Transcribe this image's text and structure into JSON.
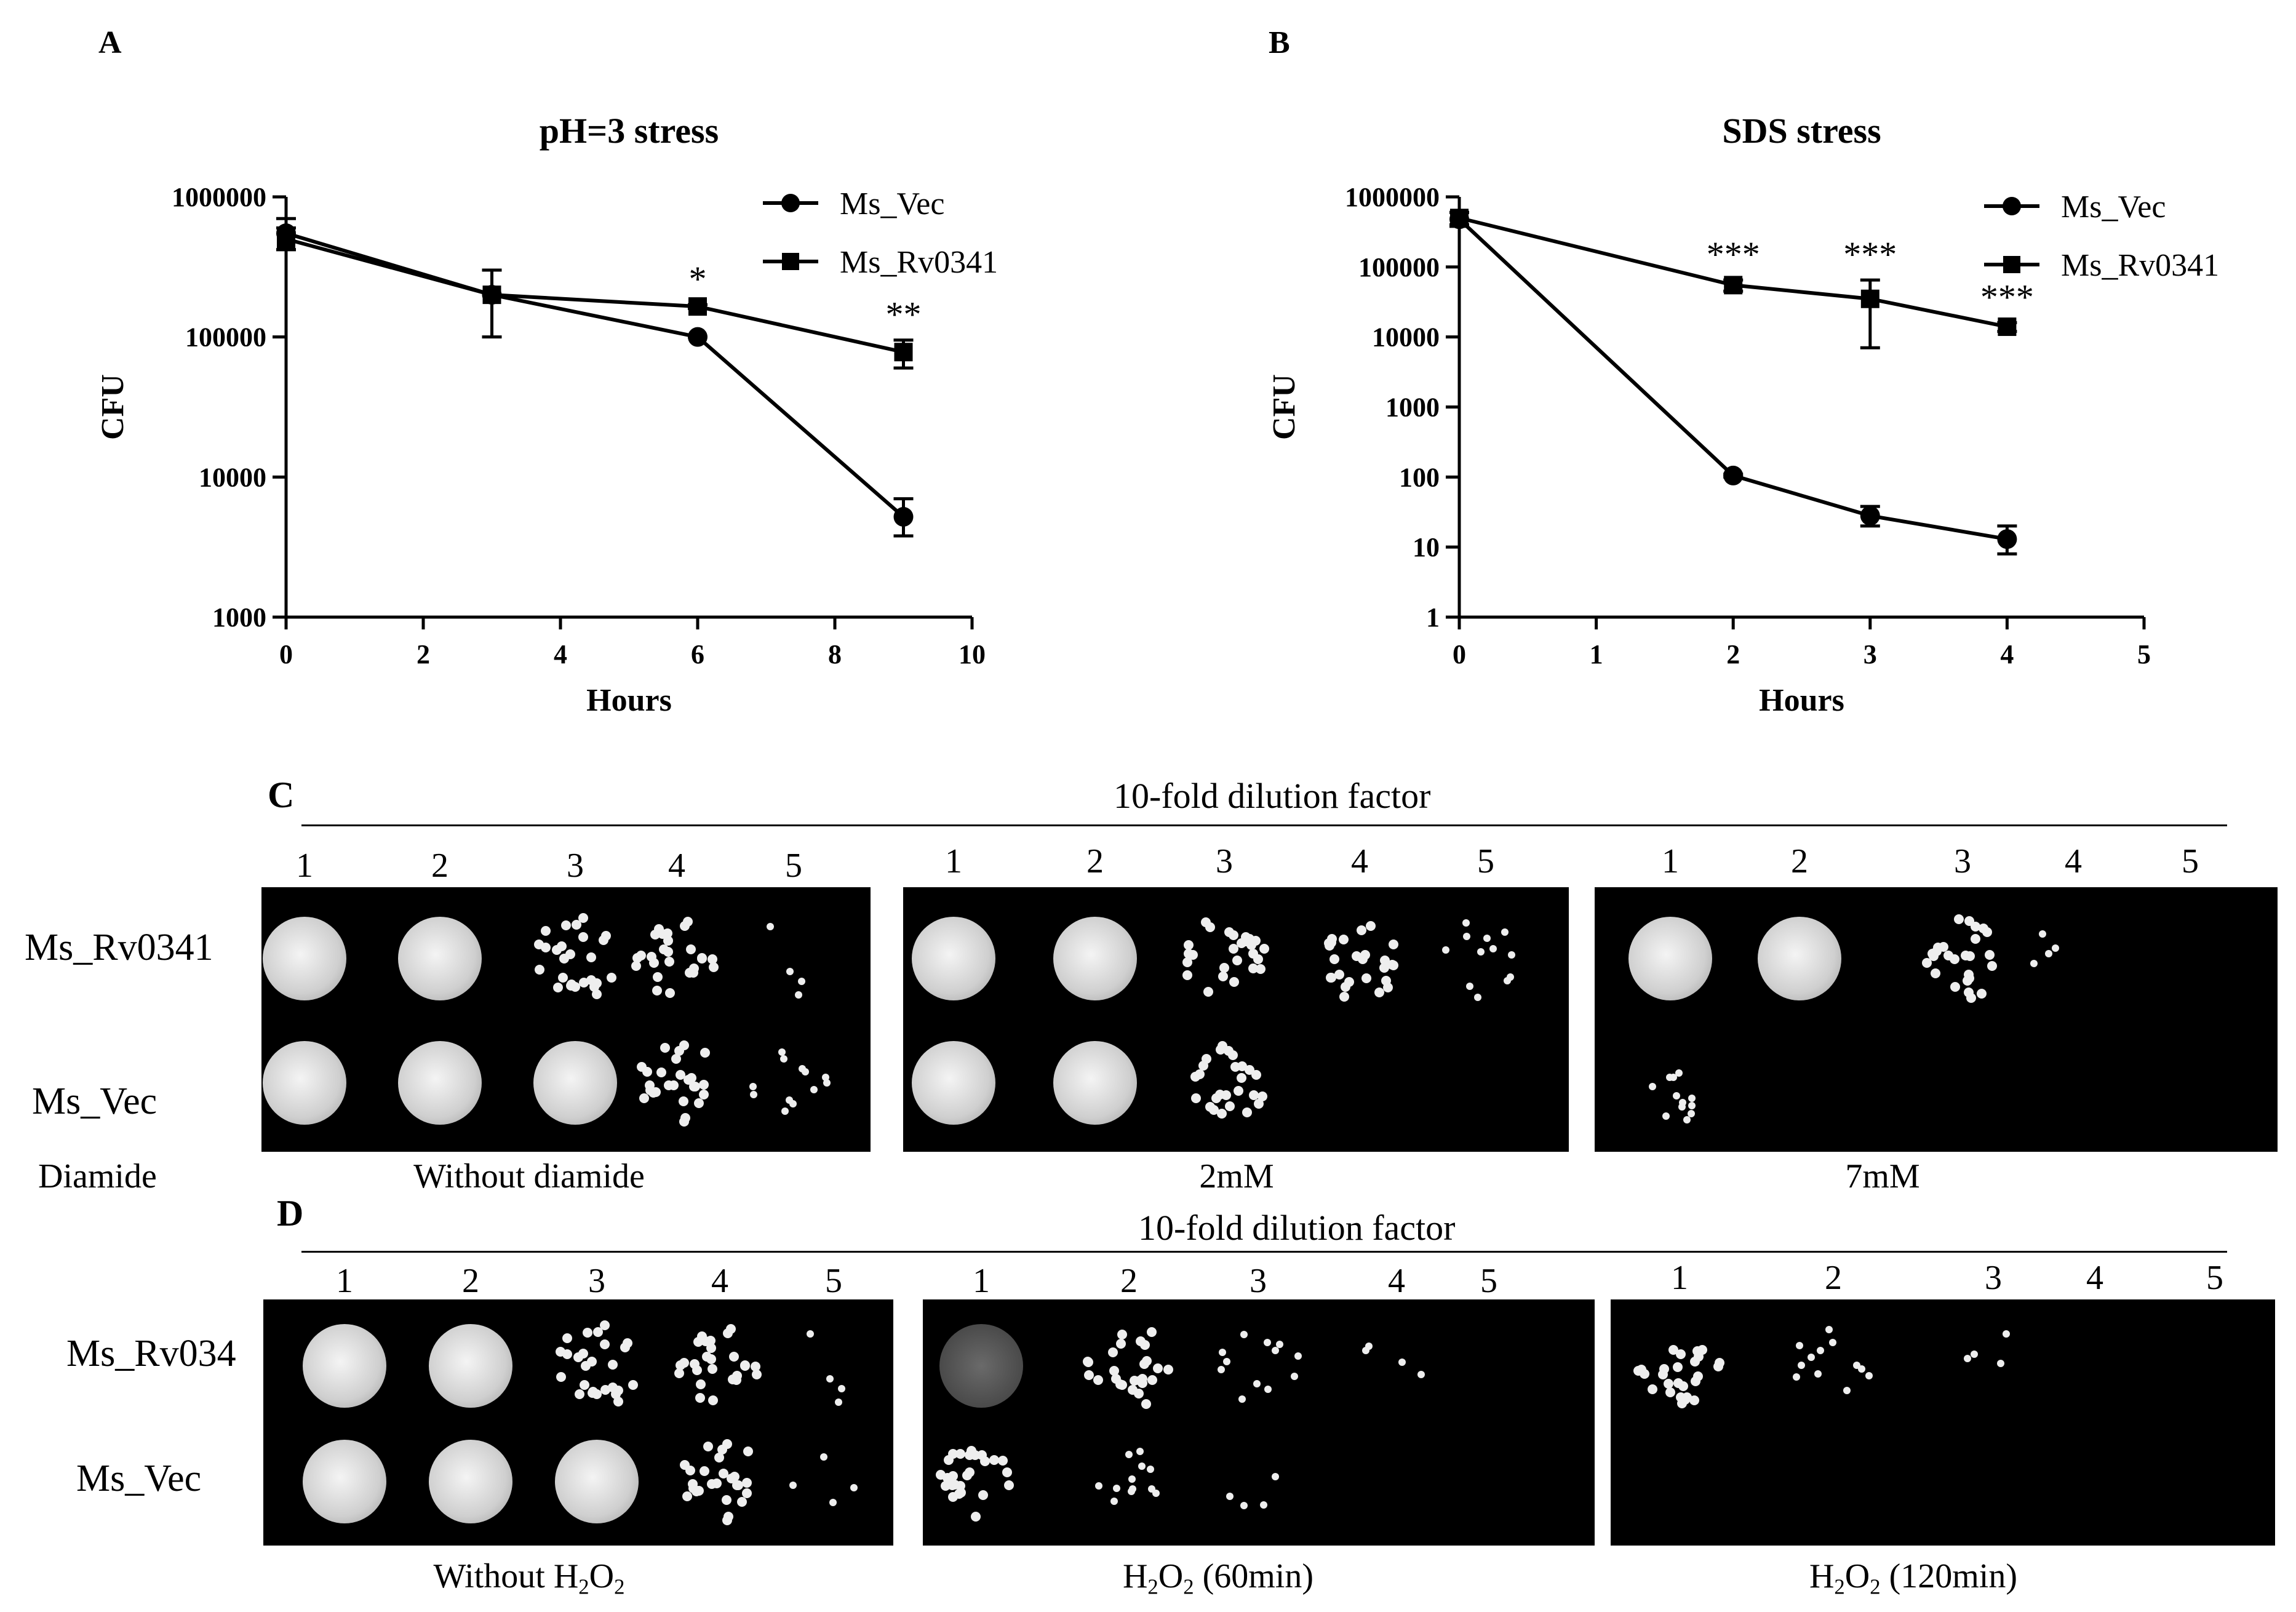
{
  "chart_data": [
    {
      "panel": "A",
      "type": "line",
      "title": "pH=3 stress",
      "xlabel": "Hours",
      "ylabel": "CFU",
      "yscale": "log",
      "xlim": [
        0,
        10
      ],
      "ylim": [
        1000,
        1000000
      ],
      "xticks": [
        "0",
        "2",
        "4",
        "6",
        "8",
        "10"
      ],
      "yticks": [
        "1000",
        "10000",
        "100000",
        "1000000"
      ],
      "legend_position": "top-right",
      "series": [
        {
          "name": "Ms_Vec",
          "marker": "circle",
          "x": [
            0,
            3,
            6,
            9
          ],
          "y": [
            550000,
            200000,
            100000,
            5200
          ],
          "err_low": [
            420000,
            100000,
            100000,
            3800
          ],
          "err_high": [
            700000,
            300000,
            100000,
            7000
          ]
        },
        {
          "name": "Ms_Rv0341",
          "marker": "square",
          "x": [
            0,
            3,
            6,
            9
          ],
          "y": [
            500000,
            200000,
            165000,
            78000
          ],
          "err_low": [
            420000,
            200000,
            160000,
            60000
          ],
          "err_high": [
            600000,
            200000,
            170000,
            95000
          ]
        }
      ],
      "annotations": [
        {
          "x": 6,
          "y": 165000,
          "text": "*"
        },
        {
          "x": 9,
          "y": 78000,
          "text": "**"
        }
      ]
    },
    {
      "panel": "B",
      "type": "line",
      "title": "SDS stress",
      "xlabel": "Hours",
      "ylabel": "CFU",
      "yscale": "log",
      "xlim": [
        0,
        5
      ],
      "ylim": [
        1,
        1000000
      ],
      "xticks": [
        "0",
        "1",
        "2",
        "3",
        "4",
        "5"
      ],
      "yticks": [
        "1",
        "10",
        "100",
        "1000",
        "10000",
        "100000",
        "1000000"
      ],
      "legend_position": "top-right",
      "series": [
        {
          "name": "Ms_Vec",
          "marker": "circle",
          "x": [
            0,
            2,
            3,
            4
          ],
          "y": [
            480000,
            105,
            28,
            13
          ],
          "err_low": [
            380000,
            100,
            20,
            8
          ],
          "err_high": [
            600000,
            110,
            38,
            20
          ]
        },
        {
          "name": "Ms_Rv0341",
          "marker": "square",
          "x": [
            0,
            2,
            3,
            4
          ],
          "y": [
            500000,
            55000,
            35000,
            14000
          ],
          "err_low": [
            400000,
            45000,
            7000,
            12000
          ],
          "err_high": [
            600000,
            65000,
            65000,
            16000
          ]
        }
      ],
      "annotations": [
        {
          "x": 2,
          "y": 55000,
          "text": "***"
        },
        {
          "x": 3,
          "y": 35000,
          "text": "***"
        },
        {
          "x": 4,
          "y": 14000,
          "text": "***"
        }
      ]
    }
  ],
  "spot_panels": [
    {
      "letter": "C",
      "header": "10-fold dilution factor",
      "rows": [
        "Ms_Rv0341",
        "Ms_Vec"
      ],
      "side_label": "Diamide",
      "conditions": [
        {
          "label": "Without diamide",
          "numbers": [
            "1",
            "2",
            "3",
            "4",
            "5"
          ]
        },
        {
          "label": "2mM",
          "numbers": [
            "1",
            "2",
            "3",
            "4",
            "5"
          ]
        },
        {
          "label": "7mM",
          "numbers": [
            "1",
            "2",
            "3",
            "4",
            "5"
          ]
        }
      ]
    },
    {
      "letter": "D",
      "header": "10-fold dilution factor",
      "rows": [
        "Ms_Rv034",
        "Ms_Vec"
      ],
      "conditions": [
        {
          "label_prefix": "Without H",
          "label_sub": "2",
          "label_mid": "O",
          "label_sub2": "2",
          "label_suffix": "",
          "numbers": [
            "1",
            "2",
            "3",
            "4",
            "5"
          ]
        },
        {
          "label_prefix": "H",
          "label_sub": "2",
          "label_mid": "O",
          "label_sub2": "2",
          "label_suffix": " (60min)",
          "numbers": [
            "1",
            "2",
            "3",
            "4",
            "5"
          ]
        },
        {
          "label_prefix": "H",
          "label_sub": "2",
          "label_mid": "O",
          "label_sub2": "2",
          "label_suffix": " (120min)",
          "numbers": [
            "1",
            "2",
            "3",
            "4",
            "5"
          ]
        }
      ]
    }
  ],
  "colors": {
    "line": "#000000",
    "spot": "#e8e8e8",
    "plate": "#000000"
  }
}
